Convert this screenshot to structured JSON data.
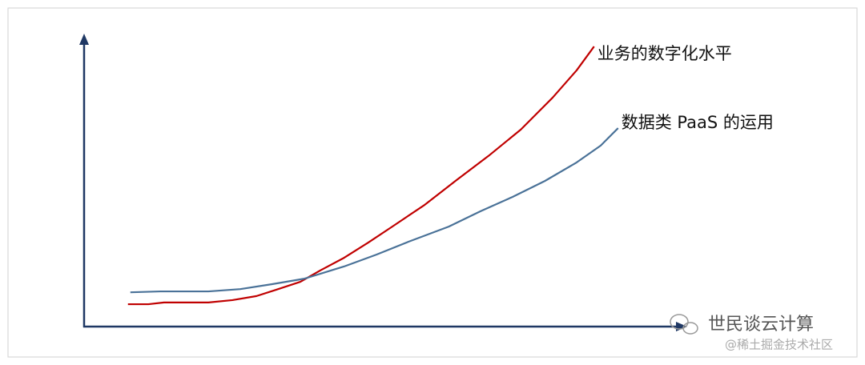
{
  "chart_data": {
    "type": "line",
    "xlim": [
      0,
      100
    ],
    "ylim": [
      0,
      100
    ],
    "series": [
      {
        "name": "业务的数字化水平",
        "color": "#c00000",
        "x": [
          7.3,
          10.7,
          13.3,
          20.7,
          24.7,
          28.7,
          32,
          36,
          39.3,
          43.3,
          47.3,
          51.3,
          56.7,
          62,
          67.3,
          72.7,
          78,
          82,
          84.9
        ],
        "values": [
          7.7,
          7.7,
          8.3,
          8.3,
          9.1,
          10.5,
          12.7,
          15.4,
          19.3,
          23.7,
          28.9,
          34.4,
          41.9,
          50.4,
          58.7,
          67.8,
          78.8,
          88.2,
          96.4
        ]
      },
      {
        "name": "数据类 PaaS 的运用",
        "color": "#4a7298",
        "x": [
          7.7,
          12.7,
          20.7,
          26,
          31.3,
          36.7,
          43.3,
          48.7,
          54,
          60.7,
          66,
          71.3,
          76.7,
          82,
          86,
          88.9
        ],
        "values": [
          11.8,
          12.1,
          12.1,
          12.9,
          14.6,
          16.5,
          20.7,
          24.8,
          29.2,
          34.4,
          39.7,
          44.6,
          50.1,
          56.5,
          62.3,
          68.3
        ]
      }
    ],
    "watermark": {
      "title": "世民谈云计算",
      "source": "@稀土掘金技术社区"
    }
  }
}
